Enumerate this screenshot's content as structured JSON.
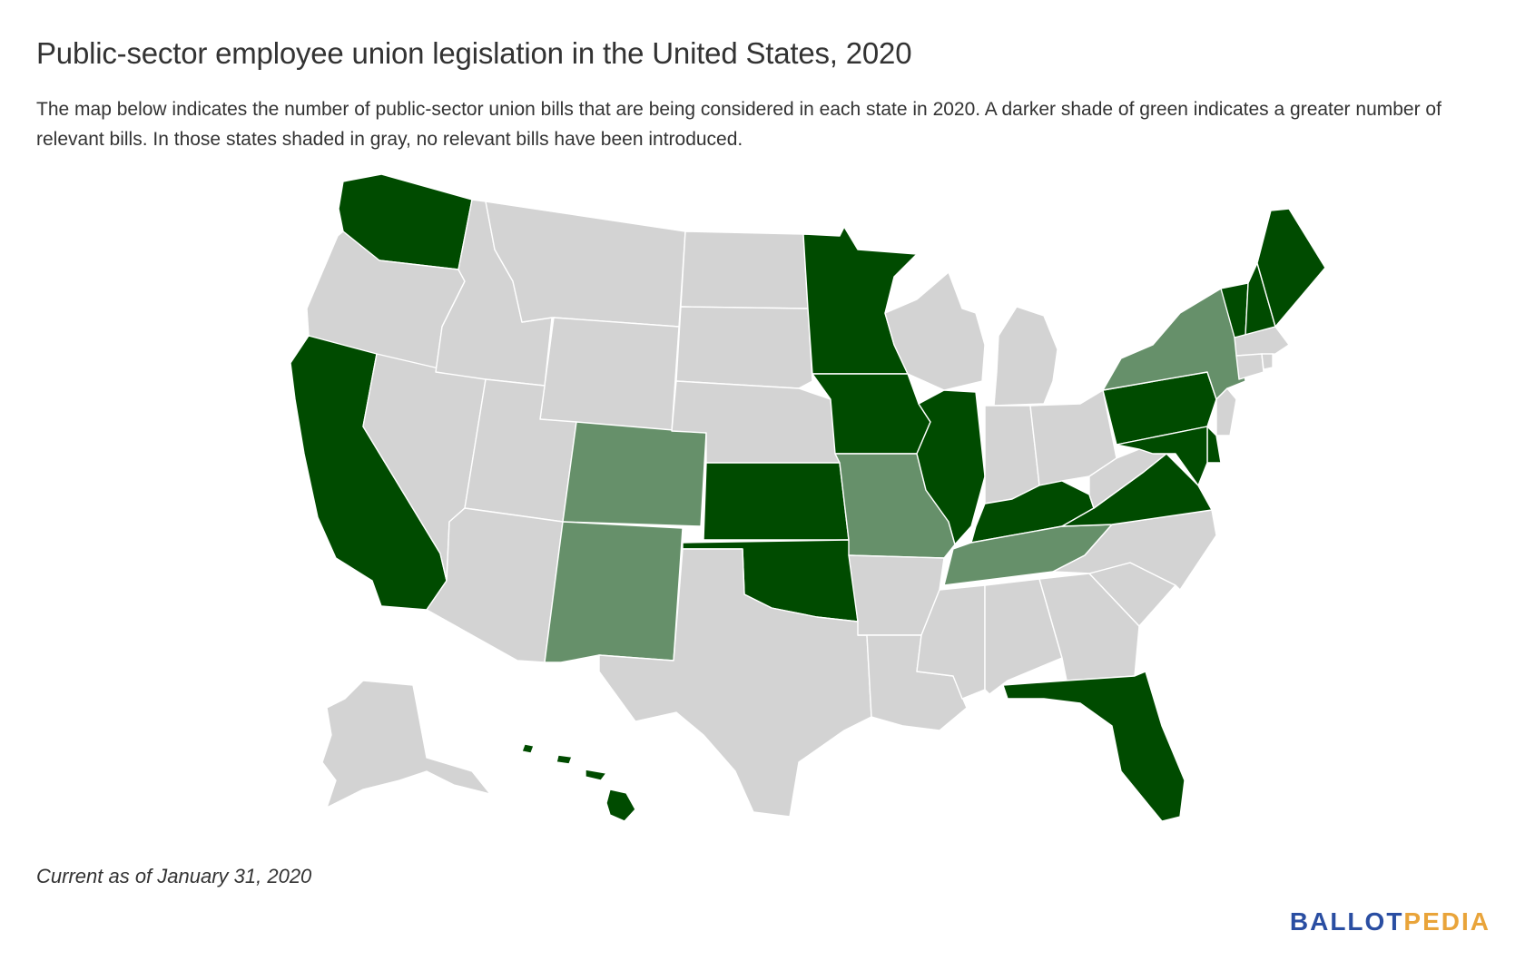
{
  "header": {
    "title": "Public-sector employee union legislation in the United States, 2020",
    "subtitle": "The map below indicates the number of public-sector union bills that are being considered in each state in 2020. A darker shade of green indicates a greater number of relevant bills. In those states shaded in gray, no relevant bills have been introduced."
  },
  "footer": {
    "note": "Current as of January 31, 2020",
    "logo_part1": "BALLOT",
    "logo_part2": "PEDIA"
  },
  "colors": {
    "none": "#d3d3d3",
    "some": "#66906a",
    "many": "#004b00",
    "logo_blue": "#2a4ea2",
    "logo_gold": "#e9a43a"
  },
  "map_data": {
    "type": "choropleth",
    "region": "United States",
    "shading": {
      "WA": "many",
      "OR": "none",
      "CA": "many",
      "NV": "none",
      "ID": "none",
      "MT": "none",
      "WY": "none",
      "UT": "none",
      "AZ": "none",
      "CO": "some",
      "NM": "some",
      "ND": "none",
      "SD": "none",
      "NE": "none",
      "KS": "many",
      "OK": "many",
      "TX": "none",
      "MN": "many",
      "IA": "many",
      "MO": "some",
      "AR": "none",
      "LA": "none",
      "WI": "none",
      "IL": "many",
      "MS": "none",
      "MI": "none",
      "IN": "none",
      "KY": "many",
      "TN": "some",
      "AL": "none",
      "OH": "none",
      "WV": "none",
      "VA": "many",
      "NC": "none",
      "SC": "none",
      "GA": "none",
      "FL": "many",
      "PA": "many",
      "NY": "some",
      "VT": "many",
      "NH": "many",
      "ME": "many",
      "MA": "none",
      "RI": "none",
      "CT": "none",
      "NJ": "none",
      "DE": "many",
      "MD": "many",
      "AK": "none",
      "HI": "many"
    }
  }
}
